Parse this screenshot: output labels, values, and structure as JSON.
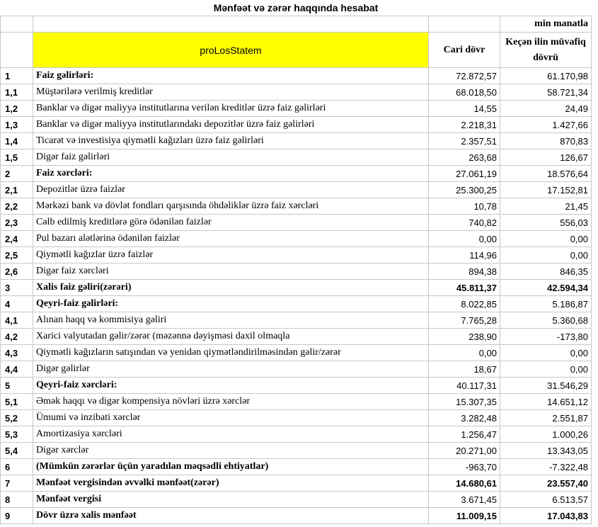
{
  "header": {
    "title": "Mənfəət və zərər haqqında hesabat",
    "unit": "min manatla"
  },
  "table": {
    "columns": [
      "proLosStatem",
      "Cari dövr",
      "Keçən ilin müvafiq dövrü"
    ],
    "rows": [
      [
        "1",
        "Faiz gəlirləri:",
        "72.872,57",
        "61.170,98"
      ],
      [
        "1,1",
        "Müştərilərə verilmiş kreditlər",
        "68.018,50",
        "58.721,34"
      ],
      [
        "1,2",
        "Banklar və digər maliyyə institutlarına verilən kreditlər üzrə faiz gəlirləri",
        "14,55",
        "24,49"
      ],
      [
        "1,3",
        "Banklar və digər maliyyə institutlarındakı depozitlər üzrə faiz gəlirləri",
        "2.218,31",
        "1.427,66"
      ],
      [
        "1,4",
        "Ticarət və investisiya qiymətli kağızları üzrə faiz gəlirləri",
        "2.357,51",
        "870,83"
      ],
      [
        "1,5",
        "Digər faiz gəlirləri",
        "263,68",
        "126,67"
      ],
      [
        "2",
        "Faiz xərcləri:",
        "27.061,19",
        "18.576,64"
      ],
      [
        "2,1",
        "Depozitlər üzrə faizlər",
        "25.300,25",
        "17.152,81"
      ],
      [
        "2,2",
        "Mərkəzi bank və dövlət fondları qarşısında öhdəliklər üzrə faiz xərcləri",
        "10,78",
        "21,45"
      ],
      [
        "2,3",
        "Cəlb edilmiş kreditlərə görə ödənilən faizlər",
        "740,82",
        "556,03"
      ],
      [
        "2,4",
        "Pul bazarı alətlərinə ödənilən faizlər",
        "0,00",
        "0,00"
      ],
      [
        "2,5",
        "Qiymətli kağızlar üzrə faizlər",
        "114,96",
        "0,00"
      ],
      [
        "2,6",
        "Digər faiz xərcləri",
        "894,38",
        "846,35"
      ],
      [
        "3",
        "Xalis faiz gəliri(zərəri)",
        "45.811,37",
        "42.594,34"
      ],
      [
        "4",
        "Qeyri-faiz gəlirləri:",
        "8.022,85",
        "5.186,87"
      ],
      [
        "4,1",
        "Alınan haqq və kommisiya gəliri",
        "7.765,28",
        "5.360,68"
      ],
      [
        "4,2",
        "Xarici valyutadan gəlir/zərər (məzənnə dəyişməsi daxil olmaqla",
        "238,90",
        "-173,80"
      ],
      [
        "4,3",
        "Qiymətli kağızların satışından və yenidən qiymətləndirilməsindən gəlir/zərər",
        "0,00",
        "0,00"
      ],
      [
        "4,4",
        "Digər gəlirlər",
        "18,67",
        "0,00"
      ],
      [
        "5",
        "Qeyri-faiz xərcləri:",
        "40.117,31",
        "31.546,29"
      ],
      [
        "5,1",
        "Əmək haqqı və digər kompensiya növləri üzrə xərclər",
        "15.307,35",
        "14.651,12"
      ],
      [
        "5,2",
        "Ümumi və inzibati xərclər",
        "3.282,48",
        "2.551,87"
      ],
      [
        "5,3",
        "Amortizasiya xərcləri",
        "1.256,47",
        "1.000,26"
      ],
      [
        "5,4",
        "Digər xərclər",
        "20.271,00",
        "13.343,05"
      ],
      [
        "6",
        "(Mümkün zərərlər üçün yaradılan məqsədli ehtiyatlar)",
        "-963,70",
        "-7.322,48"
      ],
      [
        "7",
        "Mənfəət vergisindən əvvəlki mənfəət(zərər)",
        "14.680,61",
        "23.557,40"
      ],
      [
        "8",
        "Mənfəət vergisi",
        "3.671,45",
        "6.513,57"
      ],
      [
        "9",
        "Dövr üzrə xalis mənfəət",
        "11.009,15",
        "17.043,83"
      ]
    ]
  }
}
